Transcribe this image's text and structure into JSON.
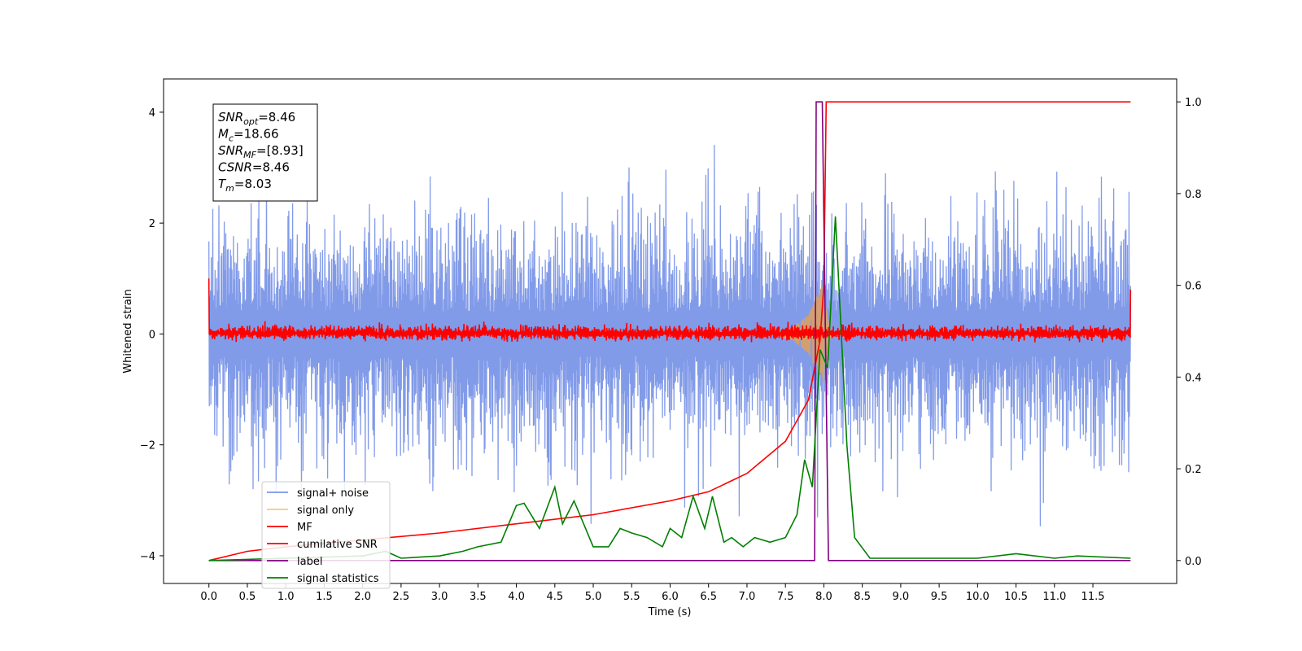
{
  "chart_data": {
    "type": "line",
    "xlabel": "Time (s)",
    "ylabel": "Whitened strain",
    "xlim": [
      -0.59,
      12.59
    ],
    "ylim": [
      -4.5,
      4.6
    ],
    "y2lim": [
      -0.05,
      1.05
    ],
    "xticks": [
      "0.0",
      "0.5",
      "1.0",
      "1.5",
      "2.0",
      "2.5",
      "3.0",
      "3.5",
      "4.0",
      "4.5",
      "5.0",
      "5.5",
      "6.0",
      "6.5",
      "7.0",
      "7.5",
      "8.0",
      "8.5",
      "9.0",
      "9.5",
      "10.0",
      "10.5",
      "11.0",
      "11.5"
    ],
    "yticks": [
      "4",
      "2",
      "0",
      "−2",
      "−4"
    ],
    "y2ticks": [
      "1.0",
      "0.8",
      "0.6",
      "0.4",
      "0.2",
      "0.0"
    ],
    "grid": false,
    "legend_position": "lower-left",
    "legend": [
      {
        "label": "signal+ noise",
        "color": "#7b96e8"
      },
      {
        "label": "signal only",
        "color": "#f7c97e"
      },
      {
        "label": "MF",
        "color": "#ff0000"
      },
      {
        "label": "cumilative SNR",
        "color": "#ff0000"
      },
      {
        "label": "label",
        "color": "#800080"
      },
      {
        "label": "signal statistics",
        "color": "#008000"
      }
    ],
    "info_box": [
      {
        "symbol": "SNR",
        "sub": "opt",
        "value": "=8.46"
      },
      {
        "symbol": "M",
        "sub": "c",
        "value": "=18.66"
      },
      {
        "symbol": "SNR",
        "sub": "MF",
        "value": "=[8.93]"
      },
      {
        "symbol": "CSNR",
        "sub": "",
        "value": "=8.46"
      },
      {
        "symbol": "T",
        "sub": "m",
        "value": "=8.03"
      }
    ],
    "series": [
      {
        "name": "signal+ noise",
        "axis": "left",
        "x_range": [
          0,
          11.99
        ],
        "band": [
          -2.5,
          2.5
        ],
        "peaks": [
          4.1,
          -3.9
        ]
      },
      {
        "name": "signal only",
        "axis": "left",
        "points": [
          [
            7.3,
            0
          ],
          [
            7.6,
            0.12
          ],
          [
            7.8,
            0.35
          ],
          [
            7.95,
            0.8
          ],
          [
            8.0,
            0.9
          ],
          [
            8.05,
            0.3
          ],
          [
            8.1,
            0
          ]
        ]
      },
      {
        "name": "MF",
        "axis": "left",
        "x_range": [
          0,
          11.99
        ],
        "band": [
          -0.15,
          0.2
        ],
        "start_value": 1.0,
        "end_value": 0.8
      },
      {
        "name": "cumilative SNR",
        "axis": "right",
        "points": [
          [
            0,
            0.0
          ],
          [
            0.5,
            0.02
          ],
          [
            1,
            0.03
          ],
          [
            2,
            0.045
          ],
          [
            3,
            0.06
          ],
          [
            4,
            0.08
          ],
          [
            5,
            0.1
          ],
          [
            6,
            0.13
          ],
          [
            6.5,
            0.15
          ],
          [
            7,
            0.19
          ],
          [
            7.5,
            0.26
          ],
          [
            7.8,
            0.35
          ],
          [
            7.95,
            0.48
          ],
          [
            8.0,
            0.6
          ],
          [
            8.03,
            1.0
          ],
          [
            11.99,
            1.0
          ]
        ]
      },
      {
        "name": "label",
        "axis": "right",
        "points": [
          [
            0,
            0
          ],
          [
            7.88,
            0
          ],
          [
            7.9,
            1
          ],
          [
            7.98,
            1
          ],
          [
            8.06,
            0
          ],
          [
            11.99,
            0
          ]
        ]
      },
      {
        "name": "signal statistics",
        "axis": "right",
        "points": [
          [
            0,
            0.0
          ],
          [
            1,
            0.005
          ],
          [
            2,
            0.01
          ],
          [
            2.3,
            0.02
          ],
          [
            2.5,
            0.005
          ],
          [
            3,
            0.01
          ],
          [
            3.3,
            0.02
          ],
          [
            3.5,
            0.03
          ],
          [
            3.8,
            0.04
          ],
          [
            4.0,
            0.12
          ],
          [
            4.1,
            0.125
          ],
          [
            4.3,
            0.07
          ],
          [
            4.5,
            0.16
          ],
          [
            4.6,
            0.08
          ],
          [
            4.75,
            0.13
          ],
          [
            4.9,
            0.07
          ],
          [
            5.0,
            0.03
          ],
          [
            5.2,
            0.03
          ],
          [
            5.35,
            0.07
          ],
          [
            5.5,
            0.06
          ],
          [
            5.7,
            0.05
          ],
          [
            5.9,
            0.03
          ],
          [
            6.0,
            0.07
          ],
          [
            6.15,
            0.05
          ],
          [
            6.3,
            0.14
          ],
          [
            6.45,
            0.07
          ],
          [
            6.55,
            0.14
          ],
          [
            6.7,
            0.04
          ],
          [
            6.8,
            0.05
          ],
          [
            6.95,
            0.03
          ],
          [
            7.1,
            0.05
          ],
          [
            7.3,
            0.04
          ],
          [
            7.5,
            0.05
          ],
          [
            7.65,
            0.1
          ],
          [
            7.75,
            0.22
          ],
          [
            7.85,
            0.16
          ],
          [
            7.95,
            0.46
          ],
          [
            8.05,
            0.42
          ],
          [
            8.15,
            0.75
          ],
          [
            8.3,
            0.25
          ],
          [
            8.4,
            0.05
          ],
          [
            8.6,
            0.005
          ],
          [
            9.0,
            0.005
          ],
          [
            9.5,
            0.005
          ],
          [
            10.0,
            0.005
          ],
          [
            10.5,
            0.015
          ],
          [
            11.0,
            0.005
          ],
          [
            11.3,
            0.01
          ],
          [
            11.99,
            0.005
          ]
        ]
      }
    ]
  }
}
